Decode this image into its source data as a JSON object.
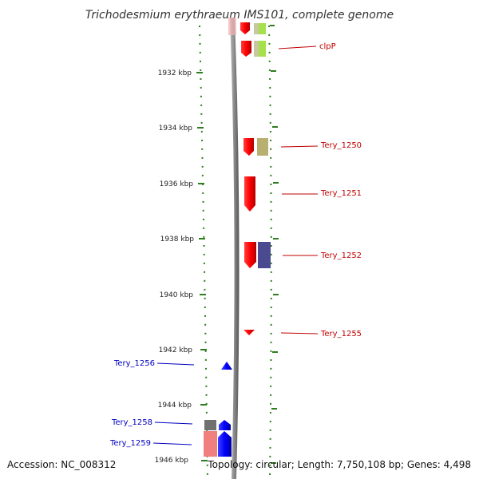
{
  "title": "Trichodesmium erythraeum IMS101, complete genome",
  "accession": "Accession: NC_008312",
  "topology": "Topology: circular; Length: 7,750,108 bp; Genes: 4,498",
  "ticks": [
    "1932 kbp",
    "1934 kbp",
    "1936 kbp",
    "1938 kbp",
    "1940 kbp",
    "1942 kbp",
    "1944 kbp",
    "1946 kbp"
  ],
  "genes_right": [
    "clpP",
    "Tery_1250",
    "Tery_1251",
    "Tery_1252",
    "Tery_1255"
  ],
  "genes_left": [
    "Tery_1256",
    "Tery_1258",
    "Tery_1259"
  ],
  "colors": {
    "forward": "#ff0000",
    "reverse": "#0000ff",
    "axis_ticks": "#2e7d1e",
    "backbone": "#888888",
    "label_red": "#c00000",
    "label_blue": "#0000c0"
  }
}
